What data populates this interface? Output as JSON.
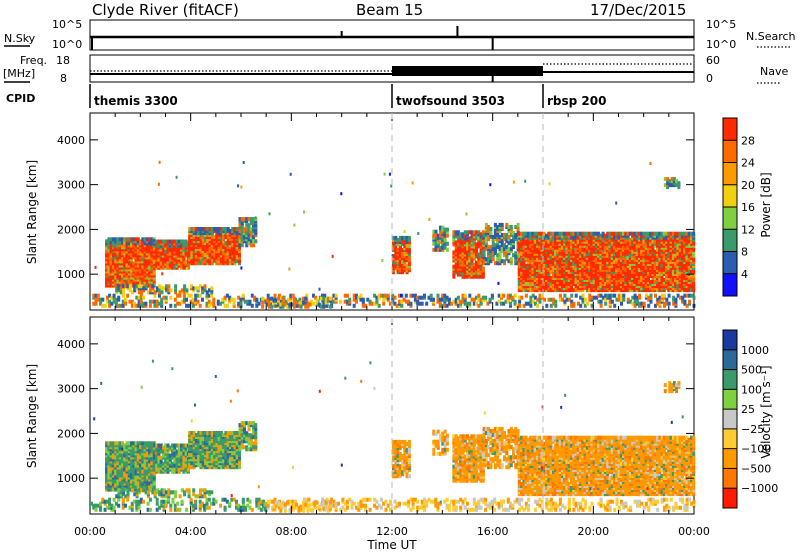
{
  "header": {
    "station": "Clyde River (fitACF)",
    "beam": "Beam 15",
    "date": "17/Dec/2015"
  },
  "top_panels": {
    "nsky_label": "N.Sky",
    "nsky_ticks": [
      "10^5",
      "10^0"
    ],
    "nsearch_label": "N.Search",
    "nsearch_ticks": [
      "10^5",
      "10^0"
    ],
    "freq_label_line1": "Freq.",
    "freq_label_line2": "[MHz]",
    "freq_ticks": [
      "18",
      "8"
    ],
    "nave_label": "Nave",
    "nave_ticks": [
      "60",
      "0"
    ],
    "cpid_label": "CPID"
  },
  "cpid_segments": [
    {
      "label": "themis 3300",
      "start_hour": 0
    },
    {
      "label": "twofsound 3503",
      "start_hour": 12
    },
    {
      "label": "rbsp 200",
      "start_hour": 18
    }
  ],
  "colors": {
    "power": [
      "#1010ff",
      "#2a5cb0",
      "#3a9a6a",
      "#7ed040",
      "#f0d010",
      "#ff9900",
      "#ff6a00",
      "#ff2a00"
    ],
    "velocity": [
      "#ff1a00",
      "#ff7700",
      "#ff9900",
      "#ffcc33",
      "#c8c8c8",
      "#7ed040",
      "#3a9a6a",
      "#2a6a9a",
      "#1a3aa0"
    ]
  },
  "chart_data": [
    {
      "type": "heatmap",
      "name": "power",
      "xlabel": "",
      "ylabel": "Slant Range [km]",
      "xlim": [
        0,
        24
      ],
      "ylim": [
        200,
        4600
      ],
      "yticks": [
        "1000",
        "2000",
        "3000",
        "4000"
      ],
      "colorbar": {
        "label": "Power [dB]",
        "ticks": [
          "4",
          "8",
          "12",
          "16",
          "20",
          "24",
          "28"
        ],
        "range": [
          0,
          32
        ]
      }
    },
    {
      "type": "heatmap",
      "name": "velocity",
      "xlabel": "Time UT",
      "ylabel": "Slant Range [km]",
      "xlim": [
        0,
        24
      ],
      "ylim": [
        200,
        4600
      ],
      "yticks": [
        "1000",
        "2000",
        "3000",
        "4000"
      ],
      "xticks": [
        "00:00",
        "04:00",
        "08:00",
        "12:00",
        "16:00",
        "20:00",
        "00:00"
      ],
      "colorbar": {
        "label": "Velocity [m s⁻¹]",
        "ticks": [
          "1000",
          "500",
          "100",
          "25",
          "−25",
          "−100",
          "−500",
          "−1000"
        ]
      }
    }
  ]
}
